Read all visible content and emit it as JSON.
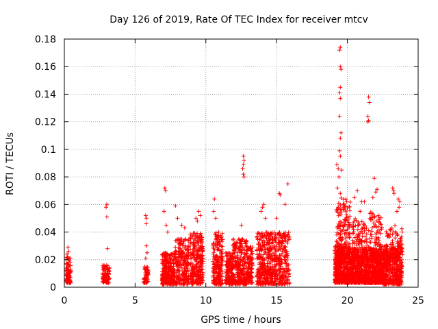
{
  "chart_data": {
    "type": "scatter",
    "title": "Day 126 of 2019, Rate Of TEC Index for receiver mtcv",
    "xlabel": "GPS time / hours",
    "ylabel": "ROTI / TECUs",
    "xlim": [
      0,
      25
    ],
    "ylim": [
      0,
      0.18
    ],
    "x_ticks": [
      "0",
      "5",
      "10",
      "15",
      "20",
      "25"
    ],
    "y_ticks": [
      "0",
      "0.02",
      "0.04",
      "0.06",
      "0.08",
      "0.1",
      "0.12",
      "0.14",
      "0.16",
      "0.18"
    ],
    "grid": true,
    "marker": "+",
    "color": "#ff0000",
    "clusters": [
      {
        "x": [
          0.1,
          0.45
        ],
        "y": [
          0.003,
          0.022
        ],
        "n": 90,
        "extra": [
          [
            0.25,
            0.029
          ],
          [
            0.3,
            0.026
          ],
          [
            0.2,
            0.024
          ]
        ]
      },
      {
        "x": [
          2.7,
          3.2
        ],
        "y": [
          0.003,
          0.016
        ],
        "n": 90,
        "extra": [
          [
            3.0,
            0.06
          ],
          [
            2.95,
            0.058
          ],
          [
            3.0,
            0.051
          ],
          [
            3.05,
            0.028
          ]
        ]
      },
      {
        "x": [
          5.6,
          5.95
        ],
        "y": [
          0.003,
          0.015
        ],
        "n": 60,
        "extra": [
          [
            5.75,
            0.052
          ],
          [
            5.8,
            0.05
          ],
          [
            5.78,
            0.046
          ],
          [
            5.8,
            0.03
          ],
          [
            5.85,
            0.025
          ],
          [
            5.75,
            0.021
          ]
        ]
      },
      {
        "x": [
          6.9,
          7.8
        ],
        "y": [
          0.002,
          0.025
        ],
        "n": 260,
        "extra": [
          [
            7.1,
            0.072
          ],
          [
            7.15,
            0.07
          ],
          [
            7.05,
            0.055
          ],
          [
            7.2,
            0.045
          ],
          [
            7.3,
            0.04
          ]
        ]
      },
      {
        "x": [
          7.8,
          8.8
        ],
        "y": [
          0.002,
          0.035
        ],
        "n": 240,
        "extra": [
          [
            7.85,
            0.059
          ],
          [
            8.0,
            0.05
          ],
          [
            8.3,
            0.045
          ],
          [
            8.5,
            0.043
          ]
        ]
      },
      {
        "x": [
          8.9,
          9.8
        ],
        "y": [
          0.002,
          0.04
        ],
        "n": 260,
        "extra": [
          [
            9.5,
            0.055
          ],
          [
            9.6,
            0.052
          ],
          [
            9.3,
            0.05
          ],
          [
            9.4,
            0.048
          ]
        ]
      },
      {
        "x": [
          10.5,
          11.2
        ],
        "y": [
          0.002,
          0.04
        ],
        "n": 220,
        "extra": [
          [
            10.6,
            0.064
          ],
          [
            10.55,
            0.055
          ],
          [
            10.7,
            0.05
          ]
        ]
      },
      {
        "x": [
          11.4,
          11.9
        ],
        "y": [
          0.002,
          0.025
        ],
        "n": 150,
        "extra": []
      },
      {
        "x": [
          11.9,
          12.9
        ],
        "y": [
          0.002,
          0.035
        ],
        "n": 260,
        "extra": [
          [
            12.65,
            0.095
          ],
          [
            12.7,
            0.092
          ],
          [
            12.65,
            0.089
          ],
          [
            12.6,
            0.086
          ],
          [
            12.65,
            0.082
          ],
          [
            12.7,
            0.08
          ],
          [
            12.5,
            0.045
          ]
        ]
      },
      {
        "x": [
          12.9,
          13.3
        ],
        "y": [
          0.003,
          0.03
        ],
        "n": 110,
        "extra": []
      },
      {
        "x": [
          13.6,
          14.6
        ],
        "y": [
          0.002,
          0.04
        ],
        "n": 280,
        "extra": [
          [
            14.1,
            0.06
          ],
          [
            14.0,
            0.058
          ],
          [
            13.9,
            0.055
          ],
          [
            14.2,
            0.05
          ]
        ]
      },
      {
        "x": [
          14.6,
          15.9
        ],
        "y": [
          0.002,
          0.04
        ],
        "n": 300,
        "extra": [
          [
            15.8,
            0.075
          ],
          [
            15.2,
            0.068
          ],
          [
            15.25,
            0.067
          ],
          [
            15.6,
            0.06
          ],
          [
            15.0,
            0.05
          ]
        ]
      },
      {
        "x": [
          19.1,
          20.2
        ],
        "y": [
          0.003,
          0.03
        ],
        "n": 520,
        "extra": [
          [
            19.5,
            0.174
          ],
          [
            19.45,
            0.172
          ],
          [
            19.5,
            0.16
          ],
          [
            19.55,
            0.158
          ],
          [
            19.5,
            0.145
          ],
          [
            19.45,
            0.141
          ],
          [
            19.5,
            0.137
          ],
          [
            19.45,
            0.124
          ],
          [
            19.55,
            0.112
          ],
          [
            19.5,
            0.108
          ],
          [
            19.45,
            0.099
          ],
          [
            19.5,
            0.095
          ],
          [
            19.25,
            0.089
          ],
          [
            19.35,
            0.086
          ],
          [
            19.6,
            0.085
          ],
          [
            19.4,
            0.08
          ],
          [
            19.3,
            0.072
          ],
          [
            19.5,
            0.068
          ],
          [
            19.7,
            0.06
          ]
        ]
      },
      {
        "x": [
          19.2,
          20.2
        ],
        "y": [
          0.02,
          0.065
        ],
        "n": 160,
        "extra": []
      },
      {
        "x": [
          20.2,
          21.4
        ],
        "y": [
          0.003,
          0.028
        ],
        "n": 480,
        "extra": [
          [
            20.7,
            0.07
          ],
          [
            20.5,
            0.065
          ],
          [
            21.0,
            0.062
          ],
          [
            21.2,
            0.062
          ],
          [
            20.9,
            0.055
          ]
        ]
      },
      {
        "x": [
          20.3,
          21.4
        ],
        "y": [
          0.02,
          0.05
        ],
        "n": 120,
        "extra": []
      },
      {
        "x": [
          21.4,
          22.5
        ],
        "y": [
          0.003,
          0.028
        ],
        "n": 460,
        "extra": [
          [
            21.5,
            0.138
          ],
          [
            21.55,
            0.134
          ],
          [
            21.45,
            0.124
          ],
          [
            21.5,
            0.121
          ],
          [
            21.45,
            0.12
          ],
          [
            21.9,
            0.079
          ],
          [
            22.1,
            0.071
          ],
          [
            22.0,
            0.069
          ],
          [
            21.8,
            0.065
          ]
        ]
      },
      {
        "x": [
          21.5,
          22.5
        ],
        "y": [
          0.02,
          0.055
        ],
        "n": 110,
        "extra": []
      },
      {
        "x": [
          22.5,
          23.9
        ],
        "y": [
          0.002,
          0.03
        ],
        "n": 440,
        "extra": [
          [
            23.2,
            0.072
          ],
          [
            23.25,
            0.07
          ],
          [
            23.3,
            0.068
          ],
          [
            23.6,
            0.064
          ],
          [
            23.7,
            0.062
          ],
          [
            23.65,
            0.058
          ],
          [
            23.5,
            0.055
          ]
        ]
      },
      {
        "x": [
          22.6,
          23.9
        ],
        "y": [
          0.02,
          0.045
        ],
        "n": 110,
        "extra": []
      }
    ]
  }
}
